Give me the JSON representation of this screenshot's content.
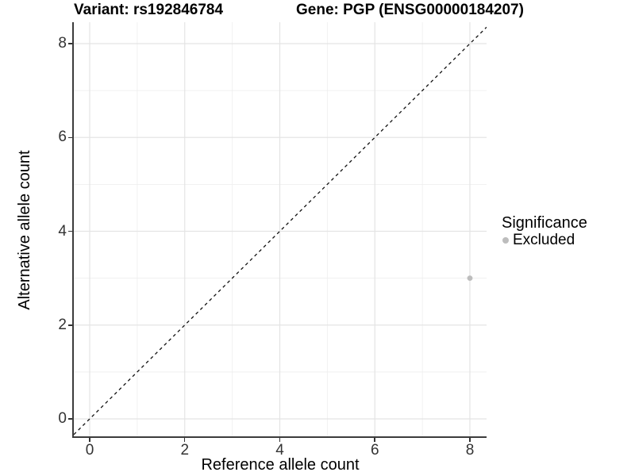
{
  "titles": {
    "left": "Variant: rs192846784",
    "right": "Gene: PGP (ENSG00000184207)"
  },
  "axes": {
    "x_label": "Reference allele count",
    "y_label": "Alternative allele count"
  },
  "legend": {
    "title": "Significance",
    "items": [
      {
        "label": "Excluded",
        "color": "#bdbdbd"
      }
    ]
  },
  "colors": {
    "background": "#ffffff",
    "axis_line": "#3c3c3c",
    "tick_mark": "#333333",
    "tick_label": "#333333",
    "grid_major": "#e4e4e4",
    "grid_minor": "#efefef",
    "reference_line": "#111111",
    "point": "#bdbdbd"
  },
  "chart_data": {
    "type": "scatter",
    "title": "Variant: rs192846784 / Gene: PGP (ENSG00000184207)",
    "xlabel": "Reference allele count",
    "ylabel": "Alternative allele count",
    "xlim": [
      -0.334,
      8.351
    ],
    "ylim": [
      -0.372,
      8.457
    ],
    "x_major_ticks": [
      0,
      2,
      4,
      6,
      8
    ],
    "y_major_ticks": [
      0,
      2,
      4,
      6,
      8
    ],
    "x_minor_ticks": [
      1,
      3,
      5,
      7
    ],
    "y_minor_ticks": [
      1,
      3,
      5,
      7
    ],
    "grid": true,
    "legend_position": "right",
    "series": [
      {
        "name": "Excluded",
        "color": "#bdbdbd",
        "points": [
          {
            "x": 8,
            "y": 3
          }
        ],
        "point_radius": 3.4
      }
    ],
    "reference_line": {
      "type": "identity",
      "style": "dashed",
      "color": "#111111",
      "dash": [
        4,
        4
      ]
    }
  }
}
